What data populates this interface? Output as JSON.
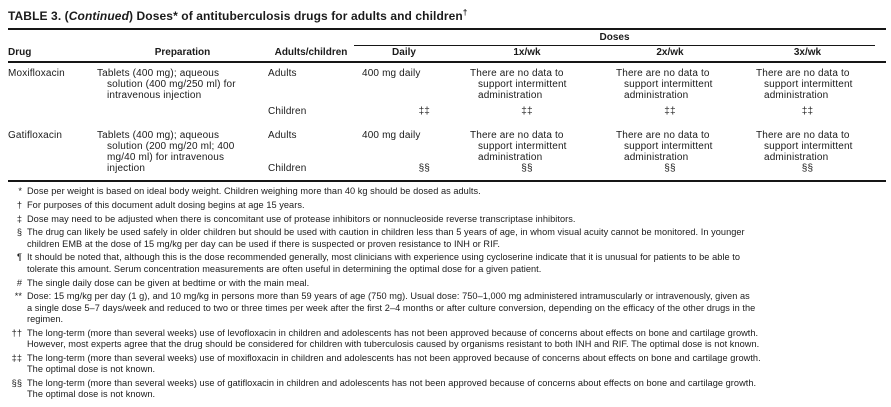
{
  "title": {
    "prefix": "TABLE 3. (",
    "continued": "Continued",
    "suffix": ") Doses* of antituberculosis drugs for adults and children",
    "mark": "†"
  },
  "header": {
    "doses": "Doses",
    "drug": "Drug",
    "preparation": "Preparation",
    "adults_children": "Adults/children",
    "daily": "Daily",
    "wk1": "1x/wk",
    "wk2": "2x/wk",
    "wk3": "3x/wk"
  },
  "rows": [
    {
      "drug": "Moxifloxacin",
      "preparation": "Tablets (400 mg); aqueous\nsolution (400 mg/250 ml) for\nintravenous injection",
      "adults": "Adults",
      "children": "Children",
      "daily_adults": "400 mg daily",
      "wk1_adults": "There are no data to\nsupport intermittent\nadministration",
      "wk2_adults": "There are no data to\nsupport intermittent\nadministration",
      "wk3_adults": "There are no data to\nsupport intermittent\nadministration",
      "daily_children": "‡‡",
      "wk1_children": "‡‡",
      "wk2_children": "‡‡",
      "wk3_children": "‡‡"
    },
    {
      "drug": "Gatifloxacin",
      "preparation": "Tablets (400 mg); aqueous\nsolution (200 mg/20 ml; 400\nmg/40 ml) for intravenous\ninjection",
      "adults": "Adults",
      "children": "Children",
      "daily_adults": "400 mg daily",
      "wk1_adults": "There are no data to\nsupport intermittent\nadministration",
      "wk2_adults": "There are no data to\nsupport intermittent\nadministration",
      "wk3_adults": "There are no data to\nsupport intermittent\nadministration",
      "daily_children": "§§",
      "wk1_children": "§§",
      "wk2_children": "§§",
      "wk3_children": "§§"
    }
  ],
  "footnotes": [
    {
      "marker": "*",
      "text": "Dose per weight is based on ideal body weight. Children weighing more than 40 kg should be dosed as adults."
    },
    {
      "marker": "†",
      "text": "For purposes of this document adult dosing begins at age 15 years."
    },
    {
      "marker": "‡",
      "text": "Dose may need to be adjusted when there is concomitant use of protease inhibitors or nonnucleoside reverse transcriptase inhibitors."
    },
    {
      "marker": "§",
      "text": "The drug can likely be used safely in older children but should be used with caution in children less than 5 years of age, in whom visual acuity cannot be monitored. In younger\nchildren EMB at the dose of 15 mg/kg per day can be used if there is suspected or proven resistance to INH or RIF."
    },
    {
      "marker": "¶",
      "text": "It should be noted that, although this is the dose recommended generally, most clinicians with experience using cycloserine indicate that it is unusual for patients to be able to\ntolerate this amount. Serum concentration measurements are often useful in determining the optimal dose for a given patient."
    },
    {
      "marker": "#",
      "text": "The single daily dose can be given at bedtime or with the main meal."
    },
    {
      "marker": "**",
      "text": "Dose: 15 mg/kg per day (1 g), and 10 mg/kg in persons more than 59 years of age (750 mg). Usual dose: 750–1,000 mg administered intramuscularly or intravenously, given as\na single dose 5–7 days/week and reduced to two or three times per week after the first 2–4 months or after culture conversion, depending on the efficacy of the other drugs in the\nregimen."
    },
    {
      "marker": "††",
      "text": "The long-term (more than several weeks) use of levofloxacin in children and adolescents has not been approved because of concerns about effects on bone and cartilage growth.\nHowever, most experts agree that the drug should be considered for children with tuberculosis caused by organisms resistant to both INH and RIF. The optimal dose is not known."
    },
    {
      "marker": "‡‡",
      "text": "The long-term (more than several weeks) use of moxifloxacin in children and adolescents has not been approved because of concerns about effects on bone and cartilage growth.\nThe optimal dose is not known."
    },
    {
      "marker": "§§",
      "text": "The long-term (more than several weeks) use of gatifloxacin in children and adolescents has not been approved because of concerns about effects on bone and cartilage growth.\nThe optimal dose is not known."
    }
  ]
}
